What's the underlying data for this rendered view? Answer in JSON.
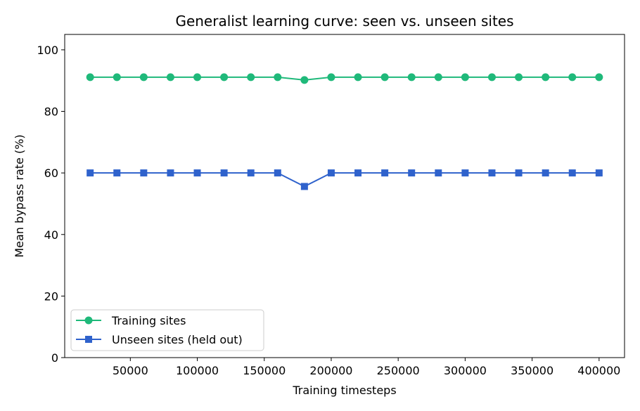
{
  "chart_data": {
    "type": "line",
    "title": "Generalist learning curve: seen vs. unseen sites",
    "xlabel": "Training timesteps",
    "ylabel": "Mean bypass rate (%)",
    "xlim": [
      1000,
      419000
    ],
    "ylim": [
      0,
      105
    ],
    "x_ticks": [
      50000,
      100000,
      150000,
      200000,
      250000,
      300000,
      350000,
      400000
    ],
    "y_ticks": [
      0,
      20,
      40,
      60,
      80,
      100
    ],
    "grid": false,
    "legend_position": "lower-left",
    "x": [
      20000,
      40000,
      60000,
      80000,
      100000,
      120000,
      140000,
      160000,
      180000,
      200000,
      220000,
      240000,
      260000,
      280000,
      300000,
      320000,
      340000,
      360000,
      380000,
      400000
    ],
    "series": [
      {
        "name": "Training sites",
        "color": "#1fb97a",
        "marker": "circle",
        "values": [
          91.1,
          91.1,
          91.1,
          91.1,
          91.1,
          91.1,
          91.1,
          91.1,
          90.2,
          91.1,
          91.1,
          91.1,
          91.1,
          91.1,
          91.1,
          91.1,
          91.1,
          91.1,
          91.1,
          91.1
        ]
      },
      {
        "name": "Unseen sites (held out)",
        "color": "#2f62cc",
        "marker": "square",
        "values": [
          60,
          60,
          60,
          60,
          60,
          60,
          60,
          60,
          55.6,
          60,
          60,
          60,
          60,
          60,
          60,
          60,
          60,
          60,
          60,
          60
        ]
      }
    ]
  }
}
